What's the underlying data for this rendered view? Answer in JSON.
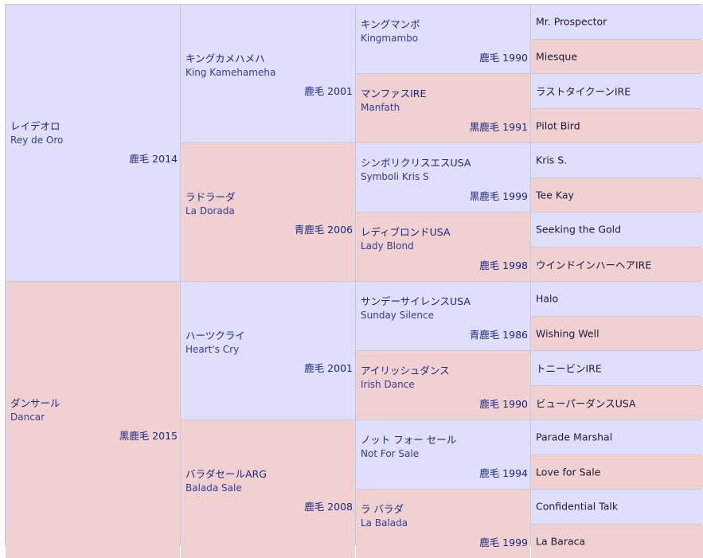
{
  "pedigree": {
    "sire": {
      "ja": "レイデオロ",
      "en": "Rey de Oro",
      "coat": "鹿毛 2014",
      "sire": {
        "ja": "キングカメハメハ",
        "en": "King Kamehameha",
        "coat": "鹿毛 2001",
        "sire": {
          "ja": "キングマンボ",
          "en": "Kingmambo",
          "coat": "鹿毛 1990",
          "sire": "Mr. Prospector",
          "dam": "Miesque"
        },
        "dam": {
          "ja": "マンファスIRE",
          "en": "Manfath",
          "coat": "黒鹿毛 1991",
          "sire": "ラストタイクーンIRE",
          "dam": "Pilot Bird"
        }
      },
      "dam": {
        "ja": "ラドラーダ",
        "en": "La Dorada",
        "coat": "青鹿毛 2006",
        "sire": {
          "ja": "シンボリクリスエスUSA",
          "en": "Symboli Kris S",
          "coat": "黒鹿毛 1999",
          "sire": "Kris S.",
          "dam": "Tee Kay"
        },
        "dam": {
          "ja": "レディブロンドUSA",
          "en": "Lady Blond",
          "coat": "鹿毛 1998",
          "sire": "Seeking the Gold",
          "dam": "ウインドインハーヘアIRE"
        }
      }
    },
    "dam": {
      "ja": "ダンサール",
      "en": "Dancar",
      "coat": "黒鹿毛 2015",
      "sire": {
        "ja": "ハーツクライ",
        "en": "Heart's Cry",
        "coat": "鹿毛 2001",
        "sire": {
          "ja": "サンデーサイレンスUSA",
          "en": "Sunday Silence",
          "coat": "青鹿毛 1986",
          "sire": "Halo",
          "dam": "Wishing Well"
        },
        "dam": {
          "ja": "アイリッシュダンス",
          "en": "Irish Dance",
          "coat": "鹿毛 1990",
          "sire": "トニービンIRE",
          "dam": "ビューパーダンスUSA"
        }
      },
      "dam": {
        "ja": "バラダセールARG",
        "en": "Balada Sale",
        "coat": "鹿毛 2008",
        "sire": {
          "ja": "ノット フォー セール",
          "en": "Not For Sale",
          "coat": "鹿毛 1994",
          "sire": "Parade Marshal",
          "dam": "Love for Sale"
        },
        "dam": {
          "ja": "ラ バラダ",
          "en": "La Balada",
          "coat": "鹿毛 1999",
          "sire": "Confidential Talk",
          "dam": "La Baraca"
        }
      }
    }
  },
  "colors": {
    "male": "#e0defa",
    "female": "#f0d0d0",
    "border": "#c8c8d8",
    "text": "#1a2a80"
  }
}
